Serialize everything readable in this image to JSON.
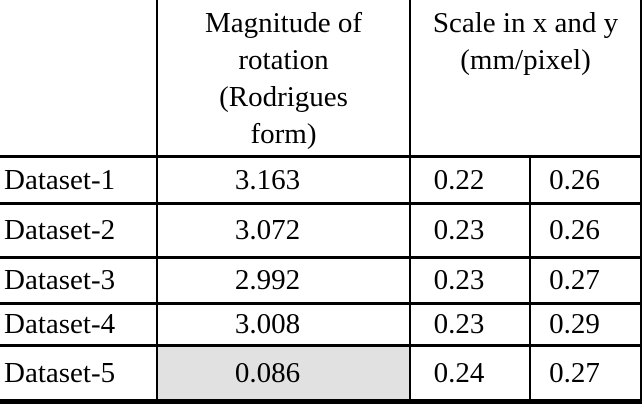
{
  "colors": {
    "highlight": "#e1e1e1",
    "border": "#000000",
    "text": "#000000",
    "page_background": "#ffffff"
  },
  "table": {
    "header": {
      "corner": "",
      "magnitude": "Magnitude of rotation (Rodrigues form)",
      "scale": "Scale in x and y (mm/pixel)"
    },
    "rows": [
      {
        "label": "Dataset-1",
        "magnitude": "3.163",
        "scale_x": "0.22",
        "scale_y": "0.26"
      },
      {
        "label": "Dataset-2",
        "magnitude": "3.072",
        "scale_x": "0.23",
        "scale_y": "0.26"
      },
      {
        "label": "Dataset-3",
        "magnitude": "2.992",
        "scale_x": "0.23",
        "scale_y": "0.27"
      },
      {
        "label": "Dataset-4",
        "magnitude": "3.008",
        "scale_x": "0.23",
        "scale_y": "0.29"
      },
      {
        "label": "Dataset-5",
        "magnitude": "0.086",
        "scale_x": "0.24",
        "scale_y": "0.27"
      }
    ]
  },
  "chart_data": {
    "type": "table",
    "columns": [
      "",
      "Magnitude of rotation (Rodrigues form)",
      "Scale in x (mm/pixel)",
      "Scale in y (mm/pixel)"
    ],
    "rows": [
      [
        "Dataset-1",
        3.163,
        0.22,
        0.26
      ],
      [
        "Dataset-2",
        3.072,
        0.23,
        0.26
      ],
      [
        "Dataset-3",
        2.992,
        0.23,
        0.27
      ],
      [
        "Dataset-4",
        3.008,
        0.23,
        0.29
      ],
      [
        "Dataset-5",
        0.086,
        0.24,
        0.27
      ]
    ],
    "highlighted_cell": {
      "row": "Dataset-5",
      "column": "Magnitude of rotation (Rodrigues form)",
      "value": 0.086
    }
  }
}
